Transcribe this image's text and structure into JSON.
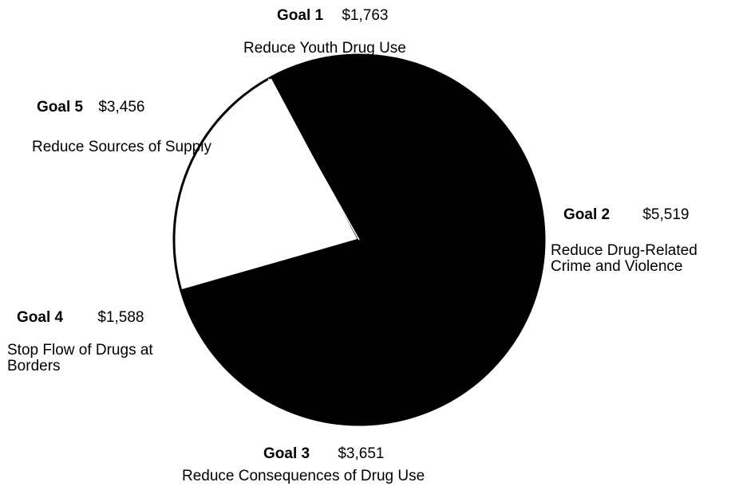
{
  "chart_data": {
    "type": "pie",
    "colors": {
      "filled": "#000000",
      "empty": "#ffffff",
      "outline": "#000000"
    },
    "slices": [
      {
        "goal": "Goal 1",
        "value_label": "$1,763",
        "value": 1763,
        "description": "Reduce Youth Drug Use",
        "fill": "filled"
      },
      {
        "goal": "Goal 2",
        "value_label": "$5,519",
        "value": 5519,
        "description": "Reduce Drug-Related Crime and Violence",
        "fill": "filled"
      },
      {
        "goal": "Goal 3",
        "value_label": "$3,651",
        "value": 3651,
        "description": "Reduce Consequences of Drug Use",
        "fill": "filled"
      },
      {
        "goal": "Goal 4",
        "value_label": "$1,588",
        "value": 1588,
        "description": "Stop Flow of Drugs at Borders",
        "fill": "filled"
      },
      {
        "goal": "Goal 5",
        "value_label": "$3,456",
        "value": 3456,
        "description": "Reduce Sources of Supply",
        "fill": "empty"
      }
    ]
  }
}
